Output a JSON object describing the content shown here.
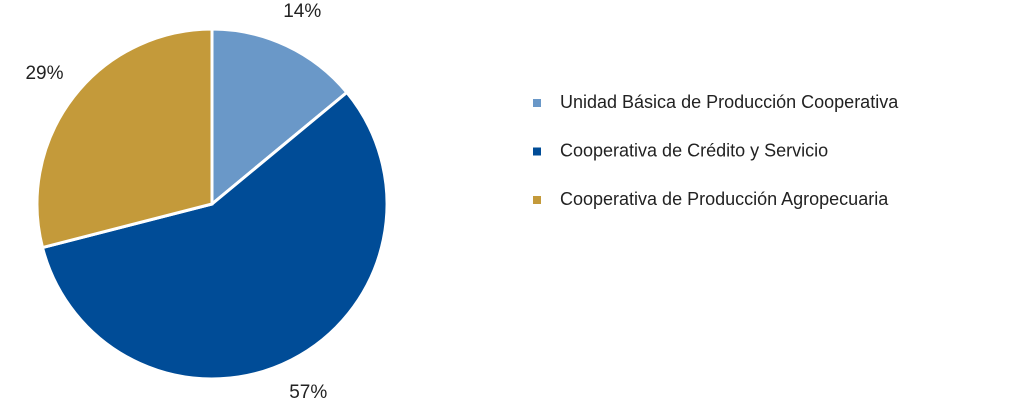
{
  "chart_data": {
    "type": "pie",
    "categories": [
      "Unidad Básica de Producción Cooperativa",
      "Cooperativa de Crédito y Servicio",
      "Cooperativa de Producción Agropecuaria"
    ],
    "values": [
      14,
      57,
      29
    ],
    "value_labels": [
      "14%",
      "57%",
      "29%"
    ],
    "colors": [
      "#6a98c8",
      "#004c97",
      "#c49a3a"
    ],
    "legend": "right"
  }
}
